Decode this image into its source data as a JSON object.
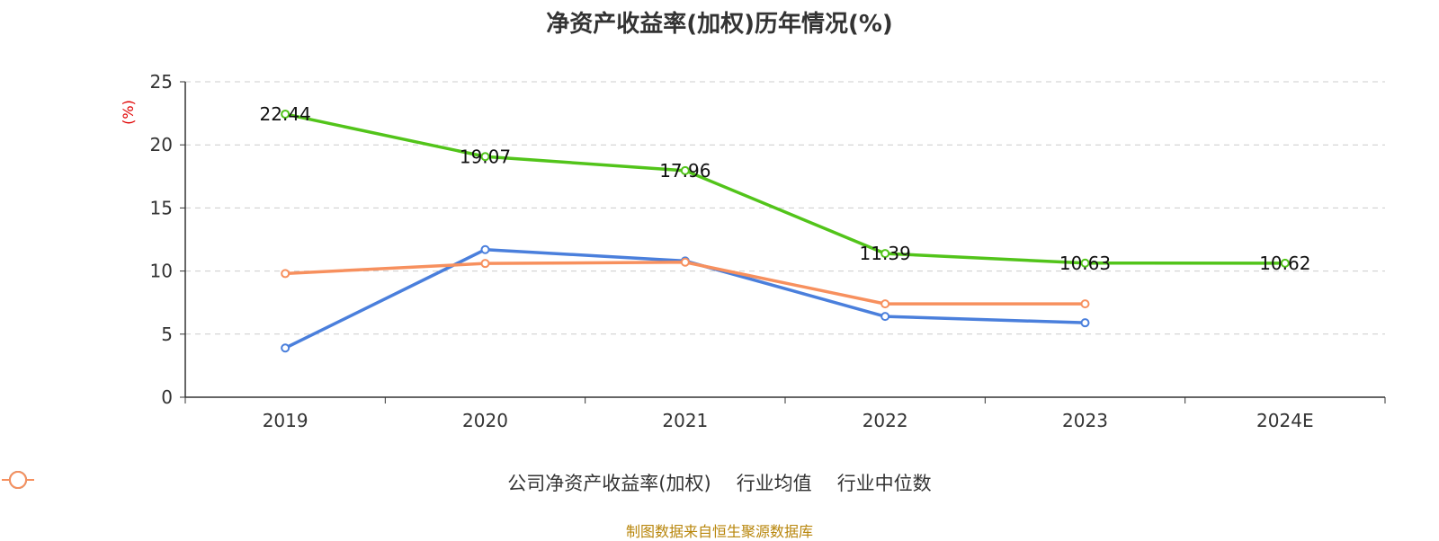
{
  "chart_data": {
    "type": "line",
    "title": "净资产收益率(加权)历年情况(%)",
    "ylabel": "(%)",
    "categories": [
      "2019",
      "2020",
      "2021",
      "2022",
      "2023",
      "2024E"
    ],
    "ylim": [
      0,
      25
    ],
    "yticks": [
      0,
      5,
      10,
      15,
      20,
      25
    ],
    "grid": true,
    "legend_position": "bottom",
    "series": [
      {
        "name": "公司净资产收益率(加权)",
        "color": "#52c41a",
        "values": [
          22.44,
          19.07,
          17.96,
          11.39,
          10.63,
          10.62
        ],
        "labels": [
          "22.44",
          "19.07",
          "17.96",
          "11.39",
          "10.63",
          "10.62"
        ]
      },
      {
        "name": "行业均值",
        "color": "#4a7fdc",
        "values": [
          3.9,
          11.7,
          10.8,
          6.4,
          5.9,
          null
        ]
      },
      {
        "name": "行业中位数",
        "color": "#f7905e",
        "values": [
          9.8,
          10.6,
          10.7,
          7.4,
          7.4,
          null
        ]
      }
    ]
  },
  "source": "制图数据来自恒生聚源数据库"
}
